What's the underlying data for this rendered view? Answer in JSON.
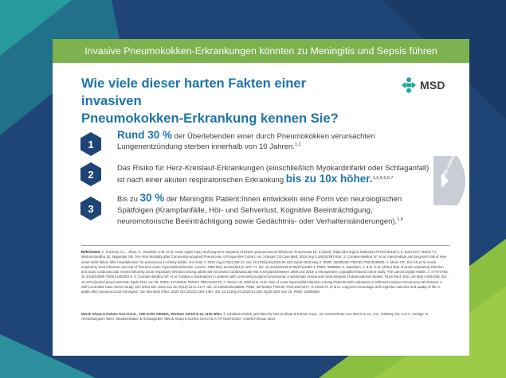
{
  "banner": {
    "title": "Invasive Pneumokokken-Erkrankungen könnten zu Meningitis und Sepsis führen"
  },
  "headline": {
    "line1": "Wie viele dieser harten Fakten einer invasiven",
    "line2": "Pneumokokken-Erkrankung kennen Sie?"
  },
  "logo": {
    "text": "MSD",
    "icon": "msd-logo-icon"
  },
  "facts": [
    {
      "number": "1",
      "highlight": "Rund 30 %",
      "text_a": " der Überlebenden einer durch Pneumokokken verursachten",
      "text_b": "Lungenentzündung sterben innerhalb von 10 Jahren.",
      "sup": "1,2"
    },
    {
      "number": "2",
      "text_a": "Das Risiko für Herz-Kreislauf-Erkrankungen (einschließlich Myokardinfarkt oder Schlaganfall)",
      "text_b": "ist nach einer akuten respiratorischen Erkrankung ",
      "highlight": "bis zu 10x höher.",
      "sup": "1,3,4,5,6,7"
    },
    {
      "number": "3",
      "text_pre": "Bis zu ",
      "highlight": "30 %",
      "text_a": " der Meningitis Patient:Innen entwickeln eine Form von neurologischen",
      "text_b": "Spätfolgen (Krampfanfälle, Hör- und Sehverlust, Kognitive Beeinträchtigung,",
      "text_c": "neuromotorische Beeinträchtigung sowie Gedächtnis- oder Verhaltensänderungen).",
      "sup": "1,8"
    }
  ],
  "side_tab": {
    "label": "Bitte wenden!"
  },
  "references": {
    "heading": "Referenzen: ",
    "body": "1. Kruckow, K.L., Zhao, K., Bowdish, D.M. et al. Acute organ injury and long-term sequelae of severe pneumococcal infections. Pneumonia 15, 5 (2023). https://doi.org/10.1186/s41479-023-00110-y. 2. Eurich DT, Marrie TJ, Minhas-Sandhu JK, Majumdar SR. Ten-Year Mortality after Community-acquired Pneumonia. A Prospective Cohort. Am J Respir Crit Care Med. 2015 Sep 1;192(5):597-604. 3. Corrales-Medina VF, et al. Intermediate and long-term risk of new-onset heart failure after hospitalization for pneumonia in elderly adults. Am Heart J. 2015 Aug;170(2):306-12. doi: 10.1016/j.ahj.2015.04.028. Epub 2015 May 2. PMID: 26299228; PMCID: PMC4548825. 4. Meier CR, Jick SS,et al. Acute respiratory-tract infections and risk of first-time acute myocardial infarction. Lancet. 1998 May 16;351(9114):1467-71. doi: 10.1016/s0140-6736(97)11084-4. PMID: 9605802. 5. Davidson, J. & B. et al. (2021) Risk of acute respiratory infection and acute cardiovascular events following acute respiratory infection among adults with increased cardiovascular risk in England between 2008 and 2018: a retrospective, population-based cohort study. The Lancet Digital Health. 3. e773-e783. 10.1016/S2589-7500(21)00203-X. 6. Corrales-Medina VF, et al. Cardiac complications in patients with community-acquired pneumonia: a systematic review and meta-analysis of observational studies. PLoS Med. 2011 Jun;8(6):e1001048. doi: 10.1371/journal.pmed.1001048. Epub 2011 Jun 28. PMID: 21738449; PMCID: PMC3125176. 7. Weise AD, Mitchel E, et al. Risk of Acute Myocardial Infarction Among Patients With Laboratory-Confirmed Invasive Pneumococcal Disease: A Self-Controlled Case Series Study. Clin Infect Dis. 2023 Jun 16;76(12):2171-2177. doi: 10.1093/cid/ciad065. PMID: 36751004; PMCID: PMC10273377. 8. Kloek AT, et al.O. Long-term neurologic and cognitive outcome and quality of life in adults after pneumococcal meningitis. Clin Microbiol Infect. 2020 Oct;26(10):1361-1367. doi: 10.1016/j.cmi.2020.01.020. Epub 2020 Jan 30. PMID: 32006689"
  },
  "imprint": {
    "bold": "Merck Sharp & Dohme Ges.m.b.H., THE ICON VIENNA, Wiedner Gürtel 9-13, 1100 Wien.",
    "text": " © Urheberrechtlich geschützt für Merck Sharp & Dohme Corp., ein Unternehmen von Merck & Co., Inc., Rahway, NJ, U.S.A. Verlags- & Herstellungsort: Wien. Medieninhaber & Herausgeber: Merck Sharp & Dohme Ges.m.b.H. AT-NON-02257, erstellt Februar 2024"
  },
  "colors": {
    "green": "#7db24e",
    "navy": "#1f4576",
    "blue": "#1d74a8",
    "teal": "#1fa49a"
  }
}
